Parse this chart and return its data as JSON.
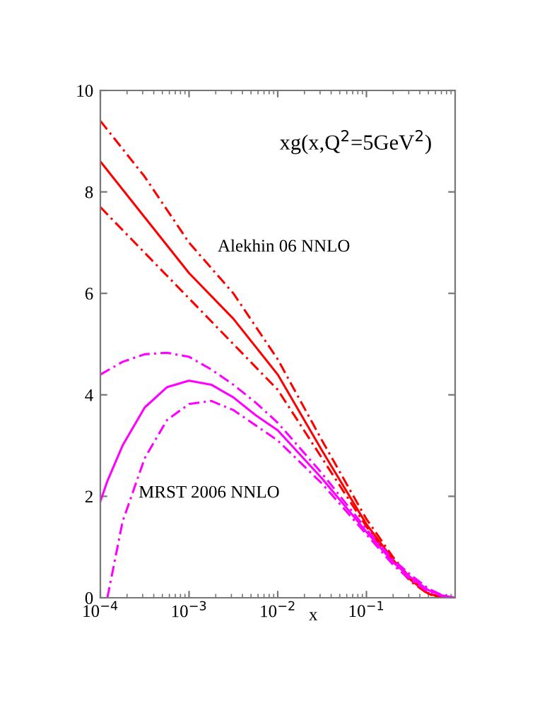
{
  "chart_data": {
    "type": "line",
    "title": "xg(x,Q$^{2}$=5GeV$^{2}$)",
    "xlabel": "x",
    "log": "x",
    "xlim": [
      0.0001,
      1
    ],
    "ylim": [
      0,
      10
    ],
    "xticks": [
      {
        "value": 0.0001,
        "label": "10$^{−4}$"
      },
      {
        "value": 0.001,
        "label": "10$^{−3}$"
      },
      {
        "value": 0.01,
        "label": "10$^{−2}$"
      },
      {
        "value": 0.1,
        "label": "10$^{−1}$"
      }
    ],
    "yticks": [
      0,
      2,
      4,
      6,
      8,
      10
    ],
    "grid": false,
    "legend": false,
    "line_style": "solid",
    "marker": "none",
    "series": [
      {
        "name": "Alekhin 06 NNLO",
        "color": "#ff0000",
        "x": [
          0.0001,
          0.000316,
          0.001,
          0.00316,
          0.01,
          0.0316,
          0.1,
          0.2,
          0.316,
          0.5,
          0.7,
          1.0
        ],
        "values": [
          8.6,
          7.5,
          6.4,
          5.5,
          4.4,
          2.9,
          1.45,
          0.75,
          0.35,
          0.08,
          0.01,
          0
        ]
      },
      {
        "color": "#ff0000",
        "line_style": "dashed",
        "x": [
          0.0001,
          0.000316,
          0.001,
          0.00316,
          0.01,
          0.0316,
          0.1,
          0.2,
          0.316,
          0.5,
          0.7,
          1.0
        ],
        "values": [
          9.4,
          8.3,
          7.0,
          6.0,
          4.7,
          3.1,
          1.55,
          0.8,
          0.38,
          0.09,
          0.01,
          0
        ]
      },
      {
        "color": "#ff0000",
        "line_style": "dashed",
        "x": [
          0.0001,
          0.000316,
          0.001,
          0.00316,
          0.01,
          0.0316,
          0.1,
          0.2,
          0.316,
          0.5,
          0.7,
          1.0
        ],
        "values": [
          7.7,
          6.8,
          5.9,
          5.0,
          4.1,
          2.75,
          1.4,
          0.7,
          0.32,
          0.07,
          0.01,
          0
        ]
      },
      {
        "name": "MRST 2006 NNLO",
        "color": "#ff00ff",
        "x": [
          0.0001,
          0.00012,
          0.000178,
          0.000316,
          0.000562,
          0.001,
          0.00178,
          0.00316,
          0.00562,
          0.01,
          0.0316,
          0.1,
          0.2,
          0.316,
          0.5,
          0.7,
          1.0
        ],
        "values": [
          1.9,
          2.3,
          3.0,
          3.75,
          4.15,
          4.28,
          4.2,
          3.95,
          3.6,
          3.3,
          2.35,
          1.3,
          0.7,
          0.4,
          0.15,
          0.05,
          0
        ]
      },
      {
        "color": "#ff00ff",
        "line_style": "dashed",
        "x": [
          0.0001,
          0.000178,
          0.000316,
          0.000562,
          0.001,
          0.00178,
          0.00316,
          0.00562,
          0.01,
          0.0316,
          0.1,
          0.2,
          0.316,
          0.5,
          0.7,
          1.0
        ],
        "values": [
          4.4,
          4.65,
          4.8,
          4.83,
          4.75,
          4.5,
          4.2,
          3.85,
          3.45,
          2.45,
          1.35,
          0.75,
          0.45,
          0.18,
          0.06,
          0
        ]
      },
      {
        "color": "#ff00ff",
        "line_style": "dashed",
        "x": [
          0.00012,
          0.000178,
          0.000316,
          0.000562,
          0.001,
          0.00178,
          0.00316,
          0.00562,
          0.01,
          0.0316,
          0.1,
          0.2,
          0.316,
          0.5,
          0.7,
          1.0
        ],
        "values": [
          0,
          1.5,
          2.75,
          3.5,
          3.82,
          3.88,
          3.7,
          3.4,
          3.1,
          2.25,
          1.25,
          0.65,
          0.35,
          0.12,
          0.04,
          0
        ]
      }
    ]
  }
}
